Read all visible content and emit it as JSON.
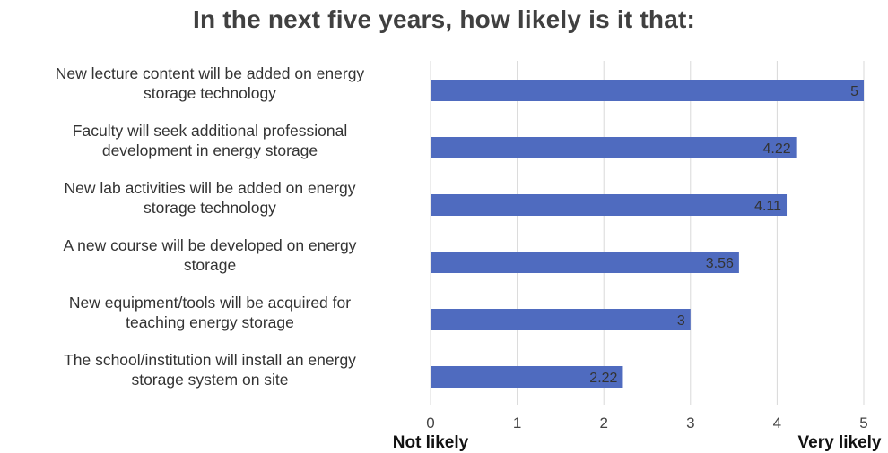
{
  "chart_data": {
    "type": "bar",
    "orientation": "horizontal",
    "title": "In the next five years, how likely is it that:",
    "categories": [
      [
        "New lecture content will be added on energy",
        "storage technology"
      ],
      [
        "Faculty will seek additional professional",
        "development in energy storage"
      ],
      [
        "New lab activities will be added on energy",
        "storage technology"
      ],
      [
        "A new course will be developed on energy",
        "storage"
      ],
      [
        "New equipment/tools will be acquired for",
        "teaching energy storage"
      ],
      [
        "The school/institution will install an energy",
        "storage system on site"
      ]
    ],
    "values": [
      5,
      4.22,
      4.11,
      3.56,
      3,
      2.22
    ],
    "value_labels": [
      "5",
      "4.22",
      "4.11",
      "3.56",
      "3",
      "2.22"
    ],
    "xlim": [
      0,
      5
    ],
    "xticks": [
      "0",
      "1",
      "2",
      "3",
      "4",
      "5"
    ],
    "scale_low_label": "Not likely",
    "scale_high_label": "Very likely",
    "bar_color": "#4f6bbf",
    "grid": true
  }
}
